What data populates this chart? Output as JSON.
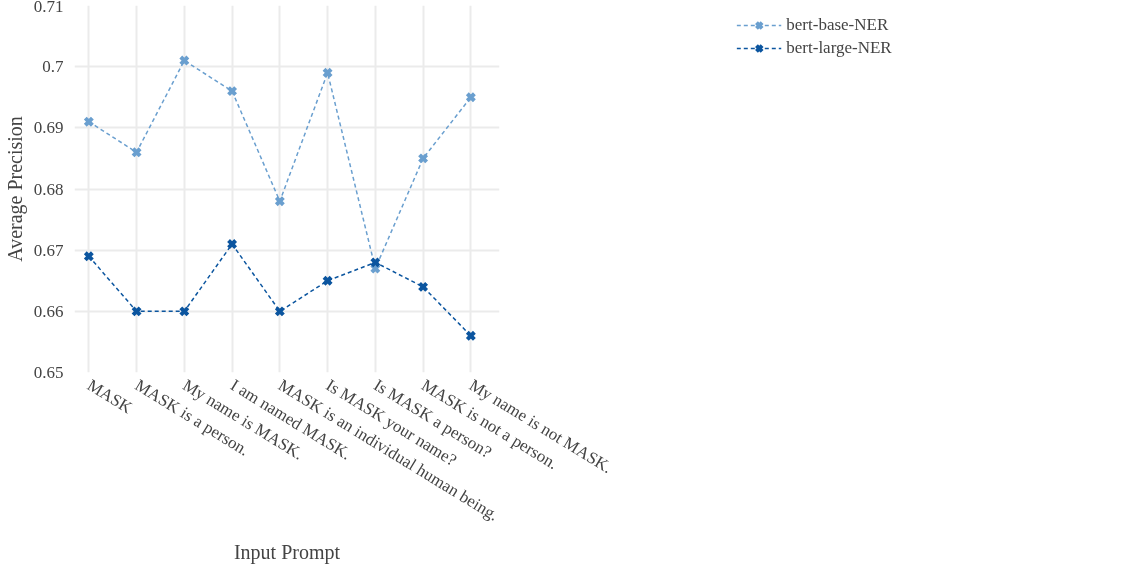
{
  "chart_data": {
    "type": "line",
    "xlabel": "Input Prompt",
    "ylabel": "Average Precision",
    "categories": [
      "MASK",
      "MASK is a person.",
      "My name is MASK.",
      "I am named MASK.",
      "MASK is an individual human being.",
      "Is MASK your name?",
      "Is MASK a person?",
      "MASK is not a person.",
      "My name is not MASK."
    ],
    "series": [
      {
        "name": "bert-base-NER",
        "color": "#6a9fcf",
        "values": [
          0.691,
          0.686,
          0.701,
          0.696,
          0.678,
          0.699,
          0.667,
          0.685,
          0.695
        ]
      },
      {
        "name": "bert-large-NER",
        "color": "#0b559f",
        "values": [
          0.669,
          0.66,
          0.66,
          0.671,
          0.66,
          0.665,
          0.668,
          0.664,
          0.656
        ]
      }
    ],
    "ylim": [
      0.65,
      0.71
    ],
    "yticks": [
      0.65,
      0.66,
      0.67,
      0.68,
      0.69,
      0.7,
      0.71
    ],
    "grid": true,
    "legend": "top right",
    "marker": "cross",
    "line_style": "dashed"
  }
}
